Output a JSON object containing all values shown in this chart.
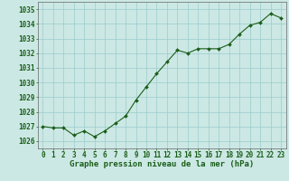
{
  "x": [
    0,
    1,
    2,
    3,
    4,
    5,
    6,
    7,
    8,
    9,
    10,
    11,
    12,
    13,
    14,
    15,
    16,
    17,
    18,
    19,
    20,
    21,
    22,
    23
  ],
  "y": [
    1027.0,
    1026.9,
    1026.9,
    1026.4,
    1026.7,
    1026.3,
    1026.7,
    1027.2,
    1027.7,
    1028.8,
    1029.7,
    1030.6,
    1031.4,
    1032.2,
    1032.0,
    1032.3,
    1032.3,
    1032.3,
    1032.6,
    1033.3,
    1033.9,
    1034.1,
    1034.7,
    1034.4
  ],
  "line_color": "#1a5e1a",
  "marker": "D",
  "marker_size": 2.0,
  "bg_color": "#cce8e4",
  "grid_color": "#99cccc",
  "title": "Graphe pression niveau de la mer (hPa)",
  "ylim": [
    1025.5,
    1035.5
  ],
  "xlim": [
    -0.5,
    23.5
  ],
  "yticks": [
    1026,
    1027,
    1028,
    1029,
    1030,
    1031,
    1032,
    1033,
    1034,
    1035
  ],
  "xtick_labels": [
    "0",
    "1",
    "2",
    "3",
    "4",
    "5",
    "6",
    "7",
    "8",
    "9",
    "10",
    "11",
    "12",
    "13",
    "14",
    "15",
    "16",
    "17",
    "18",
    "19",
    "20",
    "21",
    "22",
    "23"
  ],
  "title_fontsize": 6.5,
  "tick_fontsize": 5.5,
  "title_color": "#1a5e1a",
  "tick_color": "#1a5e1a",
  "linewidth": 0.8
}
